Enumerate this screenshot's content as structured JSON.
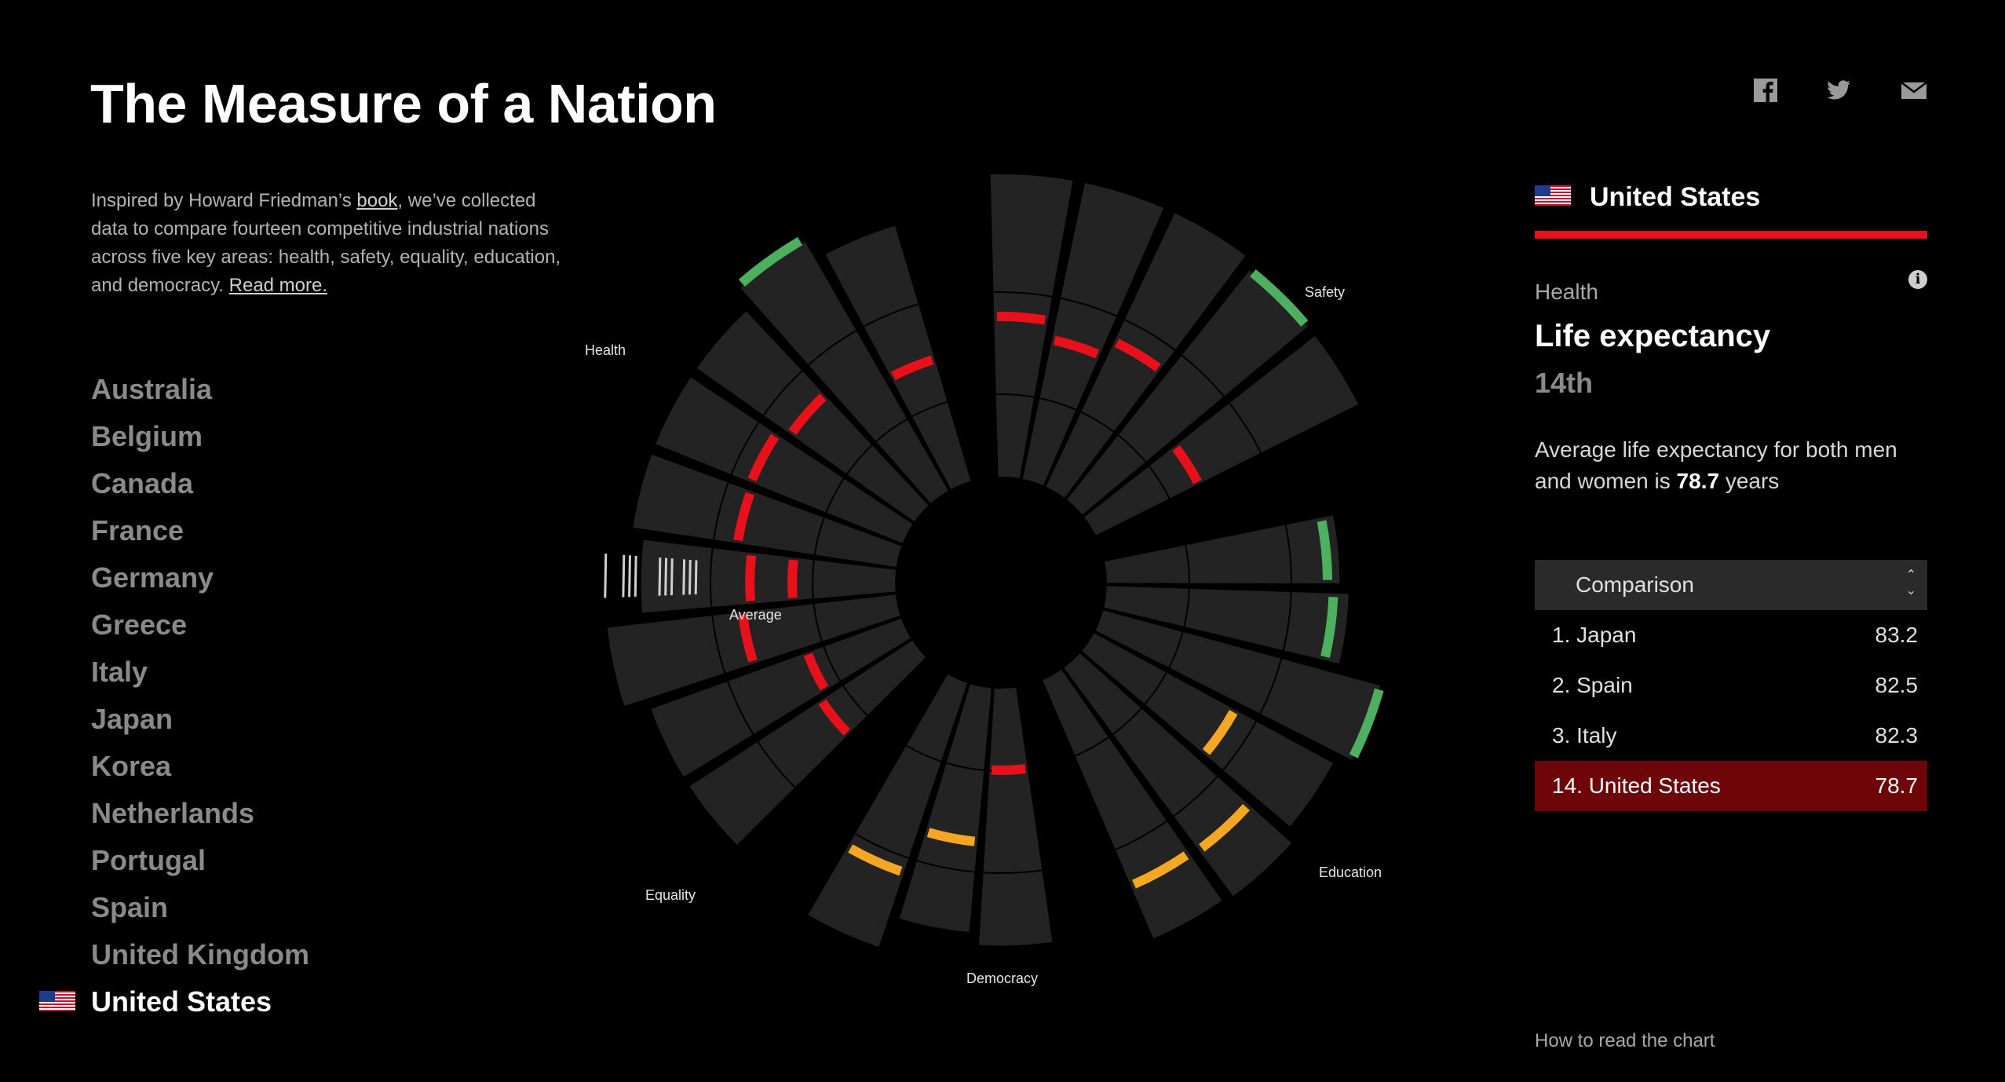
{
  "title": "The Measure of a Nation",
  "intro": {
    "text1": "Inspired by Howard Friedman’s ",
    "link1": "book",
    "text2": ", we’ve collected data to compare fourteen competitive industrial nations across five key areas: health, safety, equality, education, and democracy. ",
    "link2": "Read more."
  },
  "countries": [
    "Australia",
    "Belgium",
    "Canada",
    "France",
    "Germany",
    "Greece",
    "Italy",
    "Japan",
    "Korea",
    "Netherlands",
    "Portugal",
    "Spain",
    "United Kingdom",
    "United States"
  ],
  "selected_country": "United States",
  "share": {
    "facebook": "facebook-icon",
    "twitter": "twitter-icon",
    "email": "mail-icon"
  },
  "panel": {
    "country": "United States",
    "category": "Health",
    "metric": "Life expectancy",
    "rank": "14th",
    "desc_before": "Average life expectancy for both men and women is ",
    "desc_value": "78.7",
    "desc_after": " years",
    "comparison_label": "Comparison",
    "comparison": [
      {
        "name": "1. Japan",
        "value": "83.2"
      },
      {
        "name": "2. Spain",
        "value": "82.5"
      },
      {
        "name": "3. Italy",
        "value": "82.3"
      },
      {
        "name": "14. United States",
        "value": "78.7"
      }
    ]
  },
  "how_to_read": "How to read the chart",
  "colors": {
    "good": "#4cb05e",
    "mid": "#f5a623",
    "bad": "#e8101a",
    "wedge": "#232323",
    "accent": "#e8101a"
  },
  "chart_data": {
    "type": "radial-bar",
    "categories": [
      "Health",
      "Safety",
      "Education",
      "Democracy",
      "Equality"
    ],
    "category_labels": [
      "Health",
      "Safety",
      "Education",
      "Democracy",
      "Equality"
    ],
    "average_label": "Average",
    "metrics": [
      {
        "category": "Health",
        "length": 0.5,
        "marker": 0.34,
        "status": "bad",
        "highlight": true,
        "ticks": [
          0.96,
          0.9,
          0.88,
          0.86,
          0.78,
          0.76,
          0.74,
          0.7,
          0.68,
          0.66
        ]
      },
      {
        "category": "Health",
        "length": 0.88,
        "marker": 0.53,
        "status": "bad"
      },
      {
        "category": "Health",
        "length": 0.88,
        "marker": 0.54,
        "status": "bad"
      },
      {
        "category": "Health",
        "length": 0.88,
        "marker": 0.5,
        "status": "bad"
      },
      {
        "category": "Health",
        "length": 0.95,
        "marker": 0.96,
        "status": "good"
      },
      {
        "category": "Health",
        "length": 0.88,
        "marker": 0.42,
        "status": "bad"
      },
      {
        "category": "Safety",
        "length": 1.0,
        "marker": 0.53,
        "status": "bad"
      },
      {
        "category": "Safety",
        "length": 1.0,
        "marker": 0.47,
        "status": "bad"
      },
      {
        "category": "Safety",
        "length": 1.0,
        "marker": 0.53,
        "status": "bad"
      },
      {
        "category": "Safety",
        "length": 0.97,
        "marker": 0.97,
        "status": "good"
      },
      {
        "category": "Safety",
        "length": 0.97,
        "marker": 0.38,
        "status": "bad"
      },
      {
        "category": "Education",
        "length": 0.77,
        "marker": 0.73,
        "status": "good"
      },
      {
        "category": "Education",
        "length": 0.8,
        "marker": 0.75,
        "status": "good"
      },
      {
        "category": "Education",
        "length": 0.95,
        "marker": 0.95,
        "status": "good"
      },
      {
        "category": "Education",
        "length": 0.9,
        "marker": 0.53,
        "status": "mid"
      },
      {
        "category": "Education",
        "length": 0.94,
        "marker": 0.75,
        "status": "mid"
      },
      {
        "category": "Education",
        "length": 0.93,
        "marker": 0.74,
        "status": "mid"
      },
      {
        "category": "Democracy",
        "length": 0.85,
        "marker": 0.27,
        "status": "bad"
      },
      {
        "category": "Democracy",
        "length": 0.81,
        "marker": 0.51,
        "status": "mid"
      },
      {
        "category": "Democracy",
        "length": 0.92,
        "marker": 0.66,
        "status": "mid"
      },
      {
        "category": "Equality",
        "length": 0.88,
        "marker": 0.36,
        "status": "bad"
      },
      {
        "category": "Equality",
        "length": 0.88,
        "marker": 0.33,
        "status": "bad"
      },
      {
        "category": "Equality",
        "length": 0.96,
        "marker": 0.51,
        "status": "bad"
      },
      {
        "category": "Equality",
        "length": 0.84,
        "marker": 0.48,
        "status": "bad"
      }
    ]
  }
}
